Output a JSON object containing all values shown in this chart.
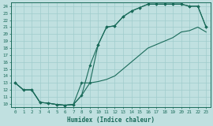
{
  "title": "",
  "xlabel": "Humidex (Indice chaleur)",
  "bg_color": "#c0e0e0",
  "grid_color": "#a0cccc",
  "line_color": "#1a6b5a",
  "xlim": [
    -0.5,
    23.5
  ],
  "ylim": [
    9.5,
    24.5
  ],
  "xticks": [
    0,
    1,
    2,
    3,
    4,
    5,
    6,
    7,
    8,
    9,
    10,
    11,
    12,
    13,
    14,
    15,
    16,
    17,
    18,
    19,
    20,
    21,
    22,
    23
  ],
  "yticks": [
    10,
    11,
    12,
    13,
    14,
    15,
    16,
    17,
    18,
    19,
    20,
    21,
    22,
    23,
    24
  ],
  "line1_x": [
    0,
    1,
    2,
    3,
    4,
    5,
    6,
    7,
    8,
    9,
    10,
    11,
    12,
    13,
    14,
    15,
    16,
    17,
    18,
    19,
    20,
    21,
    22,
    23
  ],
  "line1_y": [
    13,
    12,
    12,
    10.2,
    10.1,
    9.9,
    9.8,
    9.9,
    13.0,
    13.0,
    18.5,
    21.0,
    21.2,
    22.5,
    23.3,
    23.8,
    24.3,
    24.3,
    24.3,
    24.3,
    24.3,
    24.0,
    24.0,
    21.0
  ],
  "line2_x": [
    0,
    1,
    2,
    3,
    4,
    5,
    6,
    7,
    8,
    9,
    10,
    11,
    12,
    13,
    14,
    15,
    16,
    17,
    18,
    19,
    20,
    21,
    22,
    23
  ],
  "line2_y": [
    13,
    12,
    12,
    10.2,
    10.1,
    9.9,
    9.8,
    9.9,
    11.2,
    15.5,
    18.5,
    21.0,
    21.2,
    22.5,
    23.3,
    23.8,
    24.3,
    24.3,
    24.3,
    24.3,
    24.3,
    24.0,
    24.0,
    21.0
  ],
  "line3_x": [
    0,
    1,
    2,
    3,
    4,
    5,
    6,
    7,
    8,
    9,
    10,
    11,
    12,
    13,
    14,
    15,
    16,
    17,
    18,
    19,
    20,
    21,
    22,
    23
  ],
  "line3_y": [
    13,
    12,
    12,
    10.2,
    10.1,
    9.9,
    9.8,
    9.9,
    11.2,
    13.0,
    13.2,
    13.5,
    14.0,
    15.0,
    16.0,
    17.0,
    18.0,
    18.5,
    19.0,
    19.5,
    20.3,
    20.5,
    21.0,
    20.3
  ],
  "marker_indices_1": [
    0,
    1,
    2,
    3,
    4,
    5,
    6,
    7,
    8,
    9,
    10,
    11,
    12,
    13,
    14,
    15,
    16,
    17,
    18,
    19,
    20,
    21,
    22,
    23
  ],
  "marker_indices_2": [
    0,
    1,
    2,
    3,
    4,
    5,
    6,
    7,
    8,
    9,
    10,
    11,
    12,
    13,
    14,
    15,
    16,
    17,
    18,
    19,
    20,
    21,
    22,
    23
  ]
}
